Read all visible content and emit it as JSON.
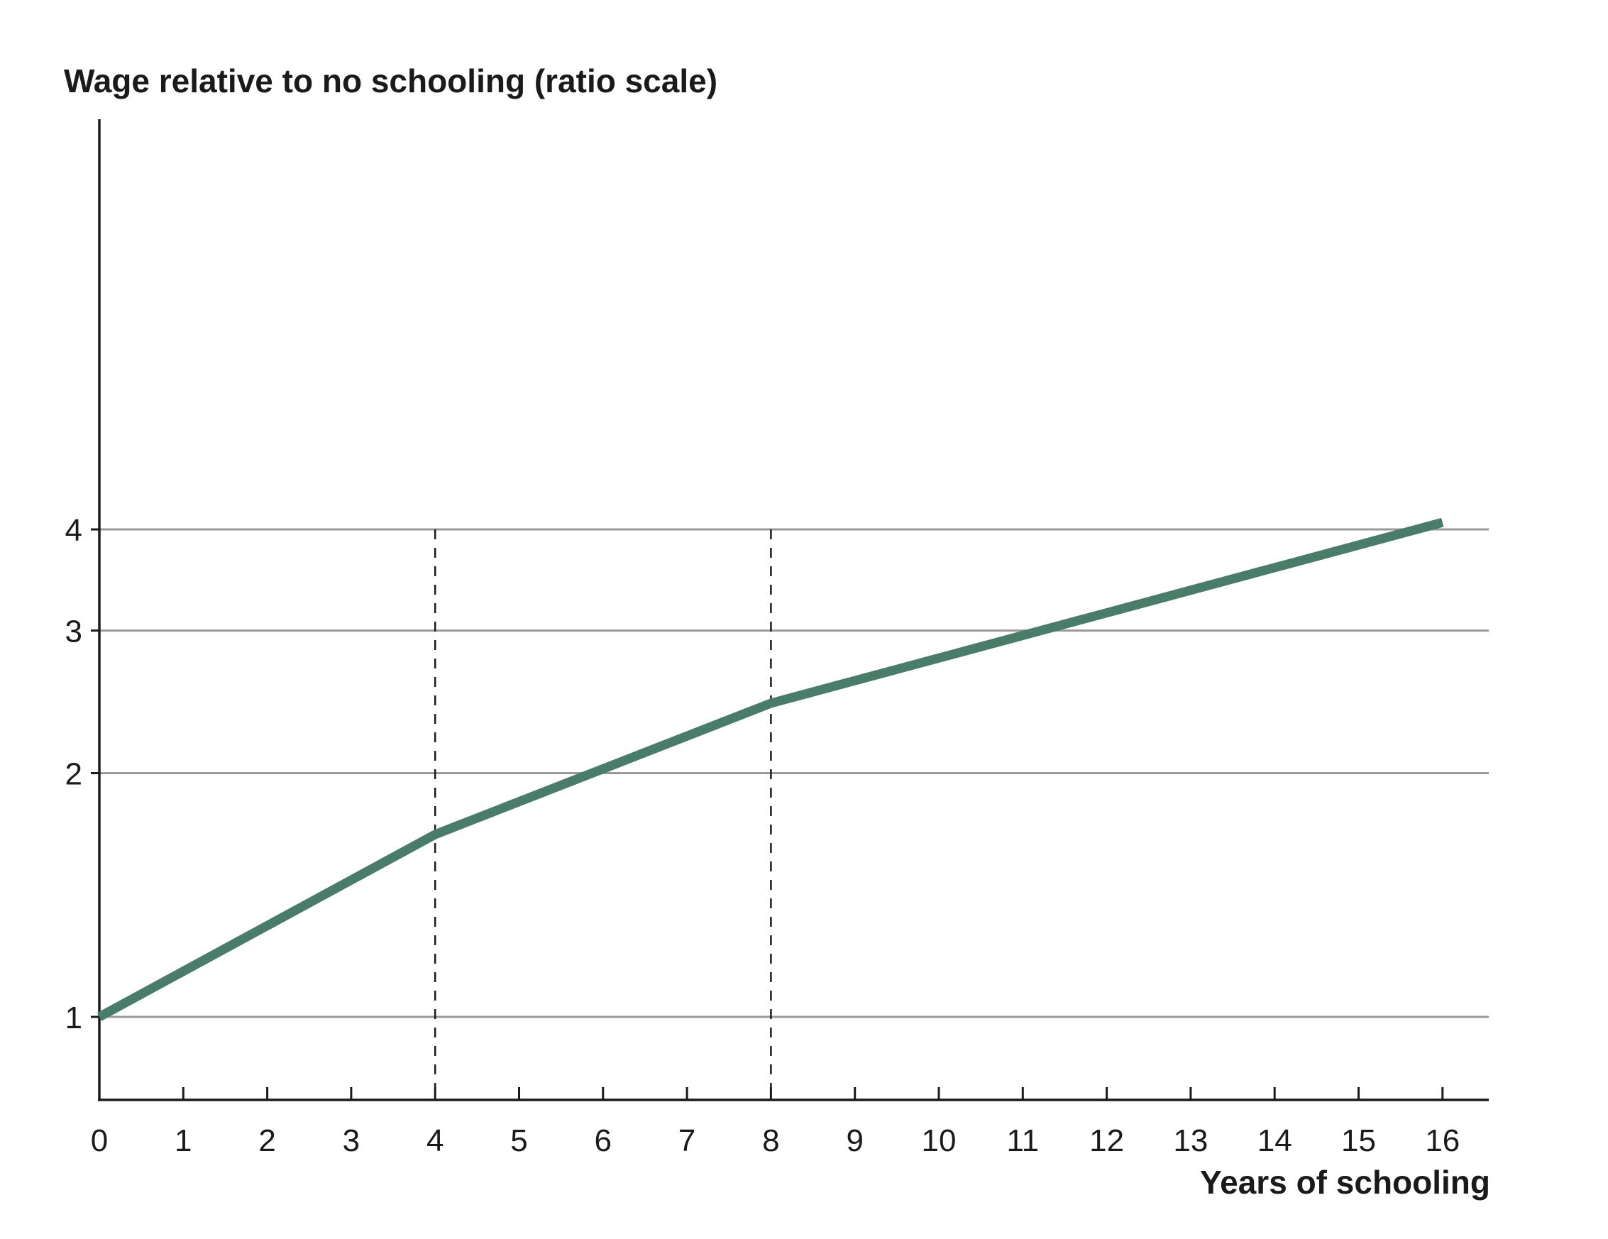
{
  "chart_data": {
    "type": "line",
    "ylabel": "Wage relative to no schooling (ratio scale)",
    "xlabel": "Years of schooling",
    "y_scale": "log",
    "xlim": [
      0,
      16.6
    ],
    "ylim": [
      0.866,
      4.4
    ],
    "x_ticks": [
      0,
      1,
      2,
      3,
      4,
      5,
      6,
      7,
      8,
      9,
      10,
      11,
      12,
      13,
      14,
      15,
      16
    ],
    "y_ticks": [
      1,
      2,
      3,
      4
    ],
    "reference_lines_x": [
      4,
      8
    ],
    "grid": "horizontal",
    "line_color": "#4a7c6a",
    "series": [
      {
        "x": [
          0,
          4,
          8,
          16
        ],
        "y": [
          1.0,
          1.68,
          2.44,
          4.08
        ]
      }
    ]
  }
}
